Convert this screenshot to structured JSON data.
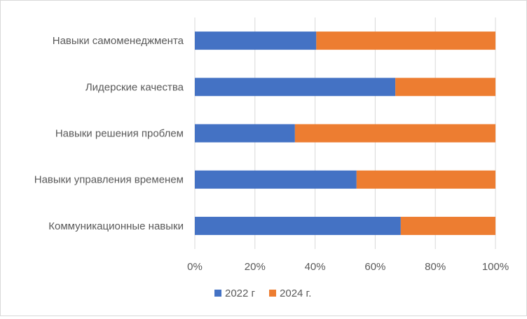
{
  "chart_data": {
    "type": "bar",
    "orientation": "horizontal",
    "stacked": "percent",
    "title": "",
    "categories": [
      "Навыки самоменеджмента",
      "Лидерские качества",
      "Навыки решения  проблем",
      "Навыки управления временем",
      "Коммуникационные навыки"
    ],
    "series": [
      {
        "name": "2022 г",
        "color": "#4472C4",
        "values": [
          40.4,
          66.7,
          33.3,
          53.8,
          68.5
        ]
      },
      {
        "name": "2024 г.",
        "color": "#ED7D31",
        "values": [
          59.6,
          33.3,
          66.7,
          46.2,
          31.5
        ]
      }
    ],
    "xlim": [
      0,
      100
    ],
    "xticks": [
      "0%",
      "20%",
      "40%",
      "60%",
      "80%",
      "100%"
    ],
    "grid": "vertical",
    "gridColor": "#d9d9d9",
    "legend": "bottom"
  }
}
